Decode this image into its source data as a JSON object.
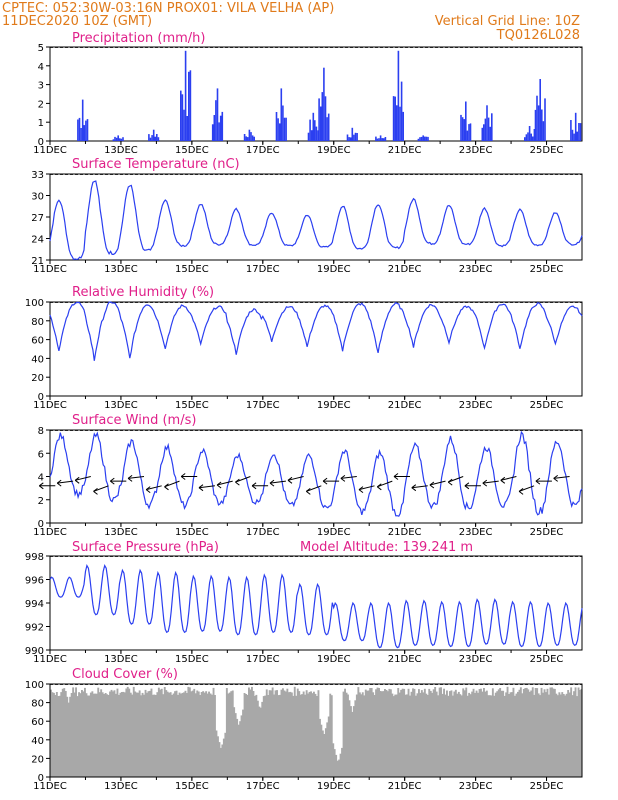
{
  "header": {
    "line1": "CPTEC:   052:30W-03:16N   PROX01: VILA VELHA (AP)",
    "line2_left": "11DEC2020 10Z (GMT)",
    "line2_right": "Vertical Grid Line: 10Z",
    "line3_right": "TQ0126L028"
  },
  "colors": {
    "header": "#e07a1a",
    "title": "#e0208a",
    "series": "#2b3ff0",
    "cloud": "#a8a8a8",
    "wind_arrow": "#000000"
  },
  "date_ticks": [
    "11DEC",
    "13DEC",
    "15DEC",
    "17DEC",
    "19DEC",
    "21DEC",
    "23DEC",
    "25DEC"
  ],
  "chart_data": [
    {
      "type": "bar",
      "title": "Precipitation (mm/h)",
      "ylim": [
        0,
        5
      ],
      "yticks": [
        0,
        1,
        2,
        3,
        4,
        5
      ],
      "xrange_days": [
        "11DEC 10Z",
        "26DEC 10Z"
      ],
      "bursts": [
        {
          "day": 11.9,
          "value": 2.2
        },
        {
          "day": 12.9,
          "value": 0.3
        },
        {
          "day": 13.9,
          "value": 0.6
        },
        {
          "day": 14.8,
          "value": 4.8
        },
        {
          "day": 15.7,
          "value": 2.8
        },
        {
          "day": 16.6,
          "value": 0.6
        },
        {
          "day": 17.5,
          "value": 2.8
        },
        {
          "day": 18.4,
          "value": 1.5
        },
        {
          "day": 18.7,
          "value": 3.9
        },
        {
          "day": 19.5,
          "value": 0.7
        },
        {
          "day": 20.3,
          "value": 0.3
        },
        {
          "day": 20.8,
          "value": 4.8
        },
        {
          "day": 21.5,
          "value": 0.3
        },
        {
          "day": 22.7,
          "value": 2.1
        },
        {
          "day": 23.3,
          "value": 1.9
        },
        {
          "day": 24.5,
          "value": 0.8
        },
        {
          "day": 24.8,
          "value": 3.3
        },
        {
          "day": 25.8,
          "value": 1.5
        }
      ]
    },
    {
      "type": "line",
      "title": "Surface Temperature (nC)",
      "ylim": [
        21,
        33
      ],
      "yticks": [
        21,
        24,
        27,
        30,
        33
      ],
      "daily_max": [
        29.5,
        32.2,
        31.5,
        29.3,
        28.8,
        28.1,
        27.6,
        27.3,
        28.5,
        28.8,
        29.5,
        28.6,
        28.2,
        28.0,
        27.6
      ],
      "daily_min": [
        21.2,
        22.0,
        22.3,
        23.0,
        23.2,
        23.1,
        23.0,
        22.8,
        22.6,
        22.7,
        23.3,
        23.2,
        23.0,
        23.1,
        23.2
      ]
    },
    {
      "type": "line",
      "title": "Relative Humidity (%)",
      "ylim": [
        0,
        100
      ],
      "yticks": [
        0,
        20,
        40,
        60,
        80,
        100
      ],
      "daily_min": [
        48,
        38,
        40,
        50,
        55,
        45,
        58,
        52,
        48,
        45,
        52,
        57,
        50,
        50,
        55
      ],
      "daily_max": [
        100,
        100,
        98,
        96,
        95,
        92,
        95,
        96,
        98,
        98,
        97,
        95,
        98,
        98,
        95
      ]
    },
    {
      "type": "line",
      "title": "Surface Wind (m/s)",
      "ylim": [
        0,
        8
      ],
      "yticks": [
        0,
        2,
        4,
        6,
        8
      ],
      "daily_max": [
        7.5,
        7.5,
        7.0,
        6.5,
        6.2,
        5.8,
        6.0,
        5.8,
        6.2,
        6.0,
        6.6,
        7.2,
        6.5,
        7.6,
        7.0
      ],
      "daily_min": [
        2.5,
        2.0,
        1.6,
        1.5,
        1.7,
        1.8,
        1.5,
        1.3,
        1.0,
        0.8,
        1.5,
        1.3,
        1.5,
        1.0,
        1.5
      ],
      "arrows": "easterly, one every 12 h"
    },
    {
      "type": "line",
      "title": "Surface Pressure (hPa)",
      "annotation": "Model Altitude: 139.241  m",
      "ylim": [
        990,
        998
      ],
      "yticks": [
        990,
        992,
        994,
        996,
        998
      ],
      "daily_max": [
        996.2,
        997.2,
        996.8,
        996.6,
        996.3,
        996.2,
        996.4,
        995.6,
        994.0,
        994.0,
        994.2,
        994.1,
        994.3,
        994.1,
        994.0
      ],
      "daily_min": [
        994.5,
        993.0,
        992.2,
        991.5,
        991.6,
        991.3,
        991.5,
        991.3,
        990.8,
        990.2,
        990.4,
        990.3,
        990.5,
        990.3,
        990.4
      ]
    },
    {
      "type": "bar",
      "title": "Cloud Cover (%)",
      "ylim": [
        0,
        100
      ],
      "yticks": [
        0,
        20,
        40,
        60,
        80,
        100
      ],
      "typical_value": 92,
      "dips": [
        {
          "day": 11.5,
          "value": 80
        },
        {
          "day": 15.8,
          "value": 30
        },
        {
          "day": 16.3,
          "value": 55
        },
        {
          "day": 16.9,
          "value": 72
        },
        {
          "day": 18.7,
          "value": 45
        },
        {
          "day": 19.1,
          "value": 15
        },
        {
          "day": 19.5,
          "value": 70
        }
      ]
    }
  ]
}
